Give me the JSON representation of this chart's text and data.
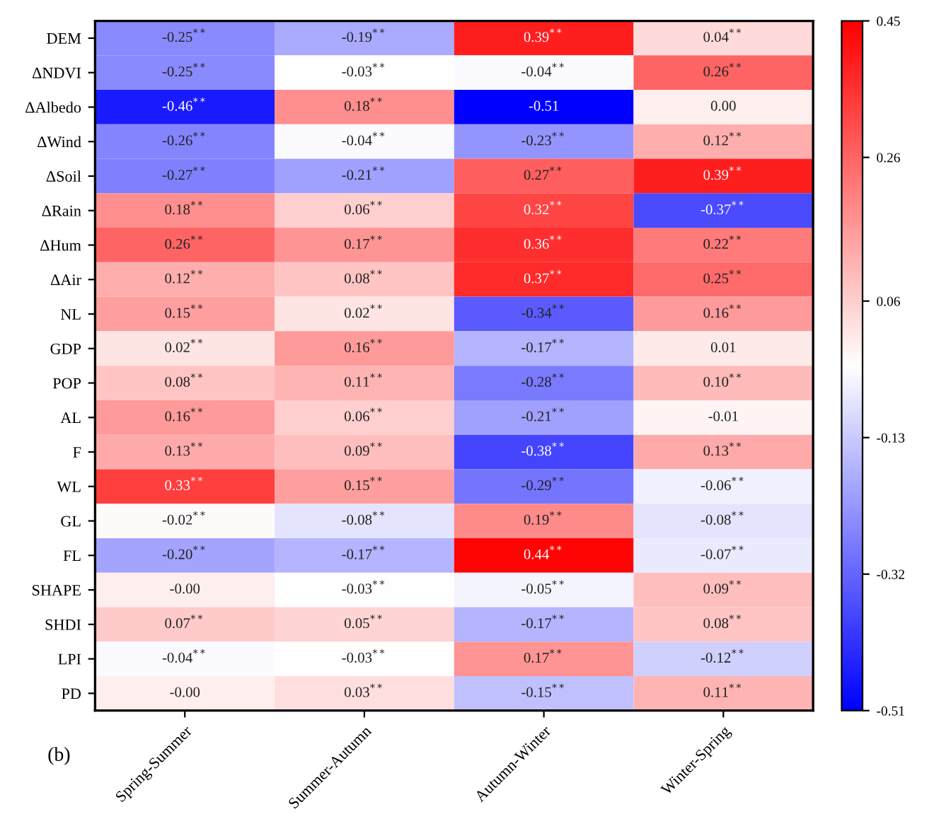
{
  "chart_data": {
    "type": "heatmap",
    "categories": [
      "Spring-Summer",
      "Summer-Autumn",
      "Autumn-Winter",
      "Winter-Spring"
    ],
    "y_categories": [
      "DEM",
      "ΔNDVI",
      "ΔAlbedo",
      "ΔWind",
      "ΔSoil",
      "ΔRain",
      "ΔHum",
      "ΔAir",
      "NL",
      "GDP",
      "POP",
      "AL",
      "F",
      "WL",
      "GL",
      "FL",
      "SHAPE",
      "SHDI",
      "LPI",
      "PD"
    ],
    "cells": [
      [
        -0.25,
        -0.19,
        0.39,
        0.04
      ],
      [
        -0.25,
        -0.03,
        -0.04,
        0.26
      ],
      [
        -0.46,
        0.18,
        -0.51,
        0.0
      ],
      [
        -0.26,
        -0.04,
        -0.23,
        0.12
      ],
      [
        -0.27,
        -0.21,
        0.27,
        0.39
      ],
      [
        0.18,
        0.06,
        0.32,
        -0.37
      ],
      [
        0.26,
        0.17,
        0.36,
        0.22
      ],
      [
        0.12,
        0.08,
        0.37,
        0.25
      ],
      [
        0.15,
        0.02,
        -0.34,
        0.16
      ],
      [
        0.02,
        0.16,
        -0.17,
        0.01
      ],
      [
        0.08,
        0.11,
        -0.28,
        0.1
      ],
      [
        0.16,
        0.06,
        -0.21,
        -0.01
      ],
      [
        0.13,
        0.09,
        -0.38,
        0.13
      ],
      [
        0.33,
        0.15,
        -0.29,
        -0.06
      ],
      [
        -0.02,
        -0.08,
        0.19,
        -0.08
      ],
      [
        -0.2,
        -0.17,
        0.44,
        -0.07
      ],
      [
        -0.0,
        -0.03,
        -0.05,
        0.09
      ],
      [
        0.07,
        0.05,
        -0.17,
        0.08
      ],
      [
        -0.04,
        -0.03,
        0.17,
        -0.12
      ],
      [
        -0.0,
        0.03,
        -0.15,
        0.11
      ]
    ],
    "cell_labels": [
      [
        "-0.25$^{**}$",
        "-0.19$^{**}$",
        "0.39$^{**}$",
        "0.04$^{**}$"
      ],
      [
        "-0.25$^{**}$",
        "-0.03$^{**}$",
        "-0.04$^{**}$",
        "0.26$^{**}$"
      ],
      [
        "-0.46$^{**}$",
        "0.18$^{**}$",
        "-0.51",
        "0.00"
      ],
      [
        "-0.26$^{**}$",
        "-0.04$^{**}$",
        "-0.23$^{**}$",
        "0.12$^{**}$"
      ],
      [
        "-0.27$^{**}$",
        "-0.21$^{**}$",
        "0.27$^{**}$",
        "0.39$^{**}$"
      ],
      [
        "0.18$^{**}$",
        "0.06$^{**}$",
        "0.32$^{**}$",
        "-0.37$^{**}$"
      ],
      [
        "0.26$^{**}$",
        "0.17$^{**}$",
        "0.36$^{**}$",
        "0.22$^{**}$"
      ],
      [
        "0.12$^{**}$",
        "0.08$^{**}$",
        "0.37$^{**}$",
        "0.25$^{**}$"
      ],
      [
        "0.15$^{**}$",
        "0.02$^{**}$",
        "-0.34$^{**}$",
        "0.16$^{**}$"
      ],
      [
        "0.02$^{**}$",
        "0.16$^{**}$",
        "-0.17$^{**}$",
        "0.01"
      ],
      [
        "0.08$^{**}$",
        "0.11$^{**}$",
        "-0.28$^{**}$",
        "0.10$^{**}$"
      ],
      [
        "0.16$^{**}$",
        "0.06$^{**}$",
        "-0.21$^{**}$",
        "-0.01"
      ],
      [
        "0.13$^{**}$",
        "0.09$^{**}$",
        "-0.38$^{**}$",
        "0.13$^{**}$"
      ],
      [
        "0.33$^{**}$",
        "0.15$^{**}$",
        "-0.29$^{**}$",
        "-0.06$^{**}$"
      ],
      [
        "-0.02$^{**}$",
        "-0.08$^{**}$",
        "0.19$^{**}$",
        "-0.08$^{**}$"
      ],
      [
        "-0.20$^{**}$",
        "-0.17$^{**}$",
        "0.44$^{**}$",
        "-0.07$^{**}$"
      ],
      [
        "-0.00",
        "-0.03$^{**}$",
        "-0.05$^{**}$",
        "0.09$^{**}$"
      ],
      [
        "0.07$^{**}$",
        "0.05$^{**}$",
        "-0.17$^{**}$",
        "0.08$^{**}$"
      ],
      [
        "-0.04$^{**}$",
        "-0.03$^{**}$",
        "0.17$^{**}$",
        "-0.12$^{**}$"
      ],
      [
        "-0.00",
        "0.03$^{**}$",
        "-0.15$^{**}$",
        "0.11$^{**}$"
      ]
    ],
    "clim": [
      -0.51,
      0.45
    ],
    "cticks": [
      -0.51,
      -0.32,
      -0.13,
      0.06,
      0.26,
      0.45
    ],
    "annotations": [
      "(b)"
    ]
  }
}
